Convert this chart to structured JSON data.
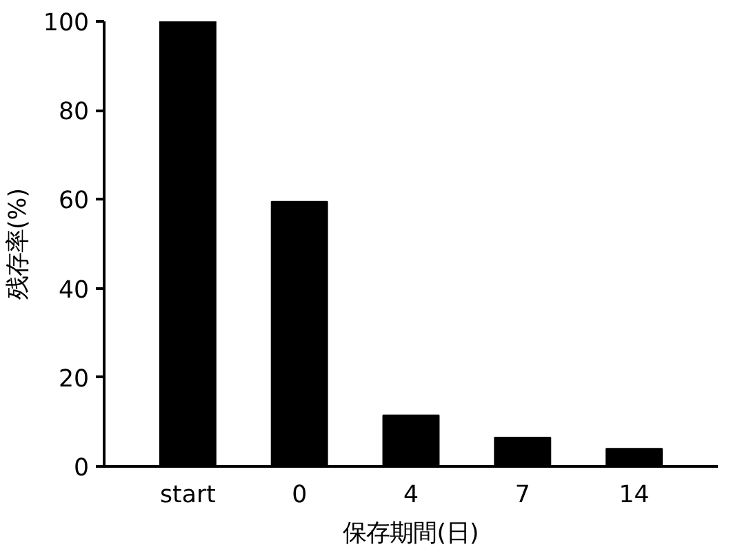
{
  "chart_data": {
    "type": "bar",
    "xlabel": "保存期間(日)",
    "ylabel": "残存率(%)",
    "categories": [
      "start",
      "0",
      "4",
      "7",
      "14"
    ],
    "values": [
      100,
      59.5,
      11.5,
      6.5,
      4
    ],
    "color": "#000000",
    "ylim": [
      0,
      100
    ],
    "yticks": [
      0,
      20,
      40,
      60,
      80,
      100
    ],
    "grid": false
  }
}
